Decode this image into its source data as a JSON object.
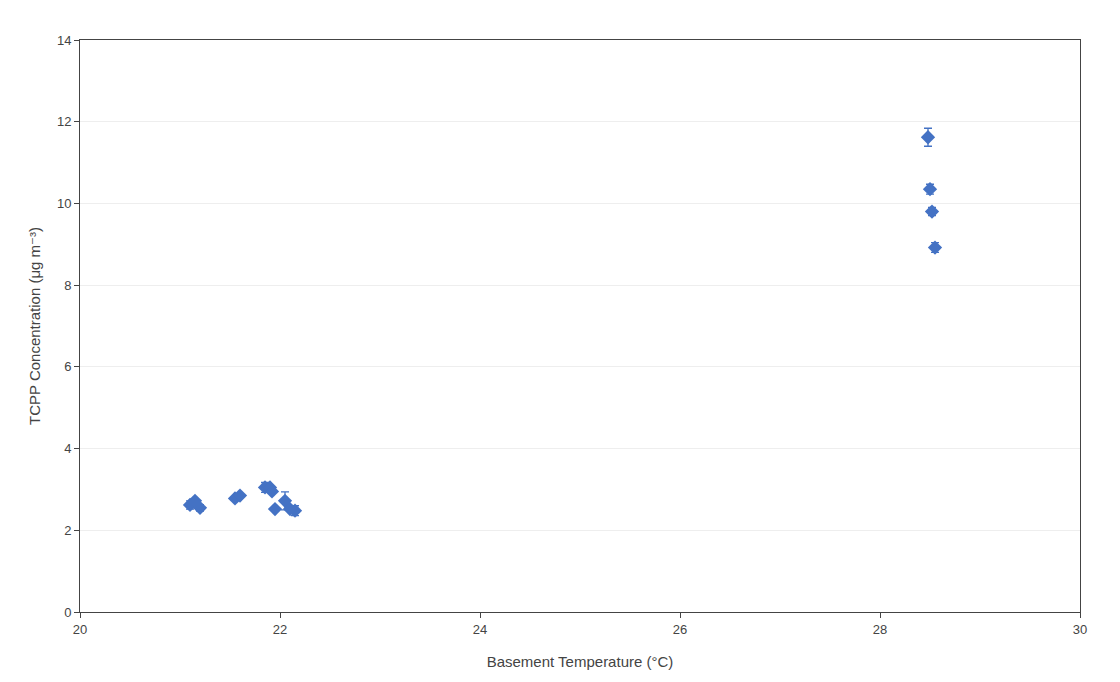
{
  "chart_data": {
    "type": "scatter",
    "xlabel": "Basement Temperature (°C)",
    "ylabel": "TCPP Concentration (μg m⁻³)",
    "x": [
      21.1,
      21.15,
      21.2,
      21.55,
      21.6,
      21.85,
      21.9,
      21.92,
      21.95,
      22.05,
      22.1,
      22.15,
      28.48,
      28.5,
      28.52,
      28.55
    ],
    "values": [
      2.62,
      2.72,
      2.55,
      2.78,
      2.85,
      3.05,
      3.05,
      2.95,
      2.52,
      2.72,
      2.52,
      2.48,
      11.62,
      10.35,
      9.8,
      8.92
    ],
    "errors": [
      0.1,
      0.0,
      0.08,
      0.0,
      0.0,
      0.12,
      0.0,
      0.0,
      0.0,
      0.22,
      0.0,
      0.12,
      0.22,
      0.12,
      0.1,
      0.12
    ],
    "color": "#4472C4",
    "marker": "diamond",
    "xlim": [
      20,
      30
    ],
    "ylim": [
      0,
      14
    ],
    "xticks": [
      20,
      22,
      24,
      26,
      28,
      30
    ],
    "yticks": [
      0,
      2,
      4,
      6,
      8,
      10,
      12,
      14
    ],
    "grid": "y"
  }
}
